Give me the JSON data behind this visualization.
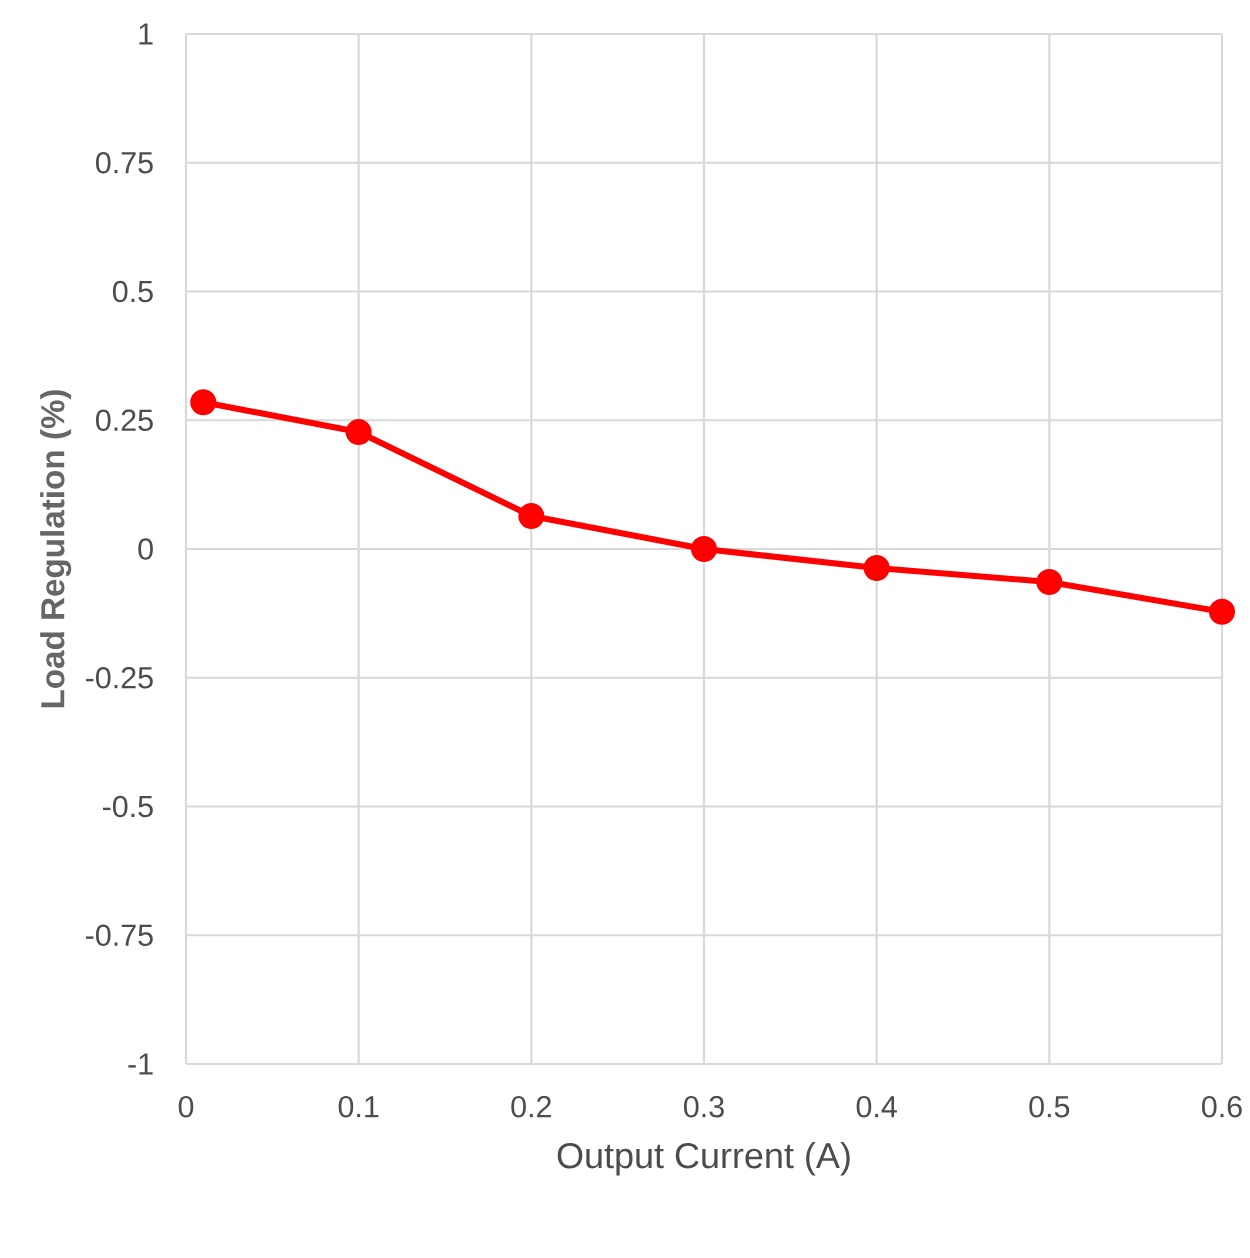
{
  "chart_data": {
    "type": "line",
    "xlabel": "Output Current (A)",
    "ylabel": "Load Regulation (%)",
    "x": [
      0.01,
      0.1,
      0.2,
      0.3,
      0.4,
      0.5,
      0.6
    ],
    "series": [
      {
        "color": "#ff0000",
        "values": [
          0.285,
          0.227,
          0.064,
          0.0,
          -0.037,
          -0.064,
          -0.122
        ]
      }
    ],
    "xlim": [
      0,
      0.6
    ],
    "ylim": [
      -1,
      1
    ],
    "xticks": [
      0,
      0.1,
      0.2,
      0.3,
      0.4,
      0.5,
      0.6
    ],
    "yticks": [
      -1,
      -0.75,
      -0.5,
      -0.25,
      0,
      0.25,
      0.5,
      0.75,
      1
    ],
    "grid": true,
    "marker": "circle",
    "line_style": "solid"
  }
}
